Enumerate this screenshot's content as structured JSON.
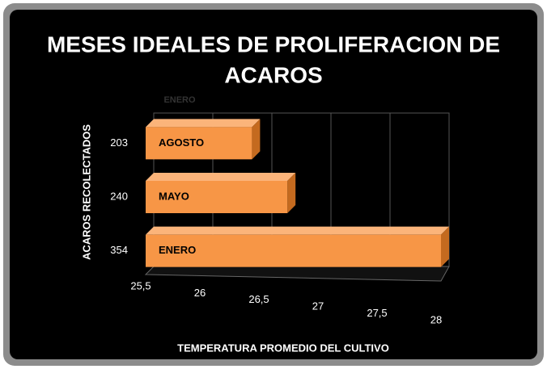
{
  "chart_data": {
    "type": "bar",
    "orientation": "horizontal",
    "title": [
      "MESES IDEALES DE PROLIFERACION DE",
      "ACAROS"
    ],
    "y_axis_label": "ACAROS   RECOLECTADOS",
    "x_axis_label": "TEMPERATURA PROMEDIO DEL CULTIVO",
    "categories": [
      "354",
      "240",
      "203"
    ],
    "series": [
      {
        "name": "ENERO",
        "color": "#f79646",
        "values": [
          28,
          26.7,
          26.4
        ]
      }
    ],
    "bar_labels": [
      "ENERO",
      "MAYO",
      "AGOSTO"
    ],
    "xlim": [
      25.5,
      28
    ],
    "xticks": [
      {
        "value": 25.5,
        "label": "25,5"
      },
      26,
      {
        "value": 26.5,
        "label": "26,5"
      },
      27,
      {
        "value": 27.5,
        "label": "27,5"
      },
      28
    ],
    "grid": true
  }
}
